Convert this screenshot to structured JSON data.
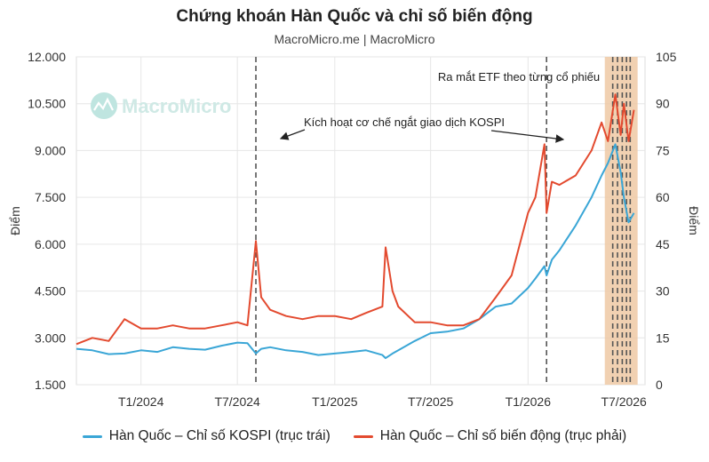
{
  "colors": {
    "kospi": "#3aa6d6",
    "vix": "#e34a2f",
    "event_band": "#efc9a5",
    "event_line": "#555555",
    "grid": "#e6e6e6"
  },
  "title": "Chứng khoán Hàn Quốc và chỉ số biến động",
  "subtitle": "MacroMicro.me | MacroMicro",
  "watermark": "MacroMicro",
  "chart_data": {
    "type": "line",
    "ylabel_left": "Điểm",
    "ylabel_right": "Điểm",
    "ylim_left": [
      1500,
      12000
    ],
    "ylim_right": [
      0,
      105
    ],
    "yticks_left": [
      "1.500",
      "3.000",
      "4.500",
      "6.000",
      "7.500",
      "9.000",
      "10.500",
      "12.000"
    ],
    "yticks_right": [
      "0",
      "15",
      "30",
      "45",
      "60",
      "75",
      "90",
      "105"
    ],
    "xticks": [
      "T1/2024",
      "T7/2024",
      "T1/2025",
      "T7/2025",
      "T1/2026",
      "T7/2026"
    ],
    "grid": true,
    "legend_position": "bottom",
    "annotations": [
      {
        "text": "Kích hoạt cơ chế ngắt giao dịch KOSPI"
      },
      {
        "text": "Ra mắt ETF theo từng cổ phiếu"
      }
    ],
    "x_dates": [
      "2023-09-01",
      "2023-10-01",
      "2023-11-01",
      "2023-12-01",
      "2024-01-01",
      "2024-02-01",
      "2024-03-01",
      "2024-04-01",
      "2024-05-01",
      "2024-06-01",
      "2024-07-01",
      "2024-07-20",
      "2024-08-05",
      "2024-08-15",
      "2024-09-01",
      "2024-10-01",
      "2024-11-01",
      "2024-12-01",
      "2025-01-01",
      "2025-02-01",
      "2025-03-01",
      "2025-04-01",
      "2025-04-07",
      "2025-04-20",
      "2025-05-01",
      "2025-06-01",
      "2025-07-01",
      "2025-08-01",
      "2025-09-01",
      "2025-10-01",
      "2025-11-01",
      "2025-12-01",
      "2026-01-01",
      "2026-01-15",
      "2026-02-01",
      "2026-02-05",
      "2026-02-15",
      "2026-03-01",
      "2026-04-01",
      "2026-05-01",
      "2026-05-20",
      "2026-06-01",
      "2026-06-15",
      "2026-06-25",
      "2026-07-01",
      "2026-07-10",
      "2026-07-20"
    ],
    "series": [
      {
        "name": "Hàn Quốc – Chỉ số KOSPI (trục trái)",
        "axis": "left",
        "values": [
          2650,
          2600,
          2480,
          2500,
          2600,
          2550,
          2700,
          2650,
          2620,
          2750,
          2850,
          2830,
          2500,
          2650,
          2700,
          2600,
          2550,
          2450,
          2500,
          2550,
          2600,
          2450,
          2350,
          2500,
          2600,
          2900,
          3150,
          3200,
          3300,
          3600,
          4000,
          4100,
          4600,
          4900,
          5300,
          5000,
          5500,
          5800,
          6600,
          7500,
          8200,
          8600,
          9200,
          8300,
          7500,
          6700,
          7000
        ]
      },
      {
        "name": "Hàn Quốc – Chỉ số biến động (trục phải)",
        "axis": "right",
        "values": [
          13,
          15,
          14,
          21,
          18,
          18,
          19,
          18,
          18,
          19,
          20,
          19,
          46,
          28,
          24,
          22,
          21,
          22,
          22,
          21,
          23,
          25,
          44,
          30,
          25,
          20,
          20,
          19,
          19,
          21,
          28,
          35,
          55,
          60,
          77,
          55,
          65,
          64,
          67,
          75,
          84,
          78,
          93,
          80,
          90,
          78,
          88
        ]
      }
    ],
    "event_dates": [
      "2024-08-05",
      "2026-02-05",
      "2026-06-10",
      "2026-06-19",
      "2026-06-28",
      "2026-07-06",
      "2026-07-13"
    ],
    "event_band": [
      "2026-05-26",
      "2026-07-27"
    ],
    "x_start": "2023-09-01",
    "x_end": "2026-08-10"
  }
}
